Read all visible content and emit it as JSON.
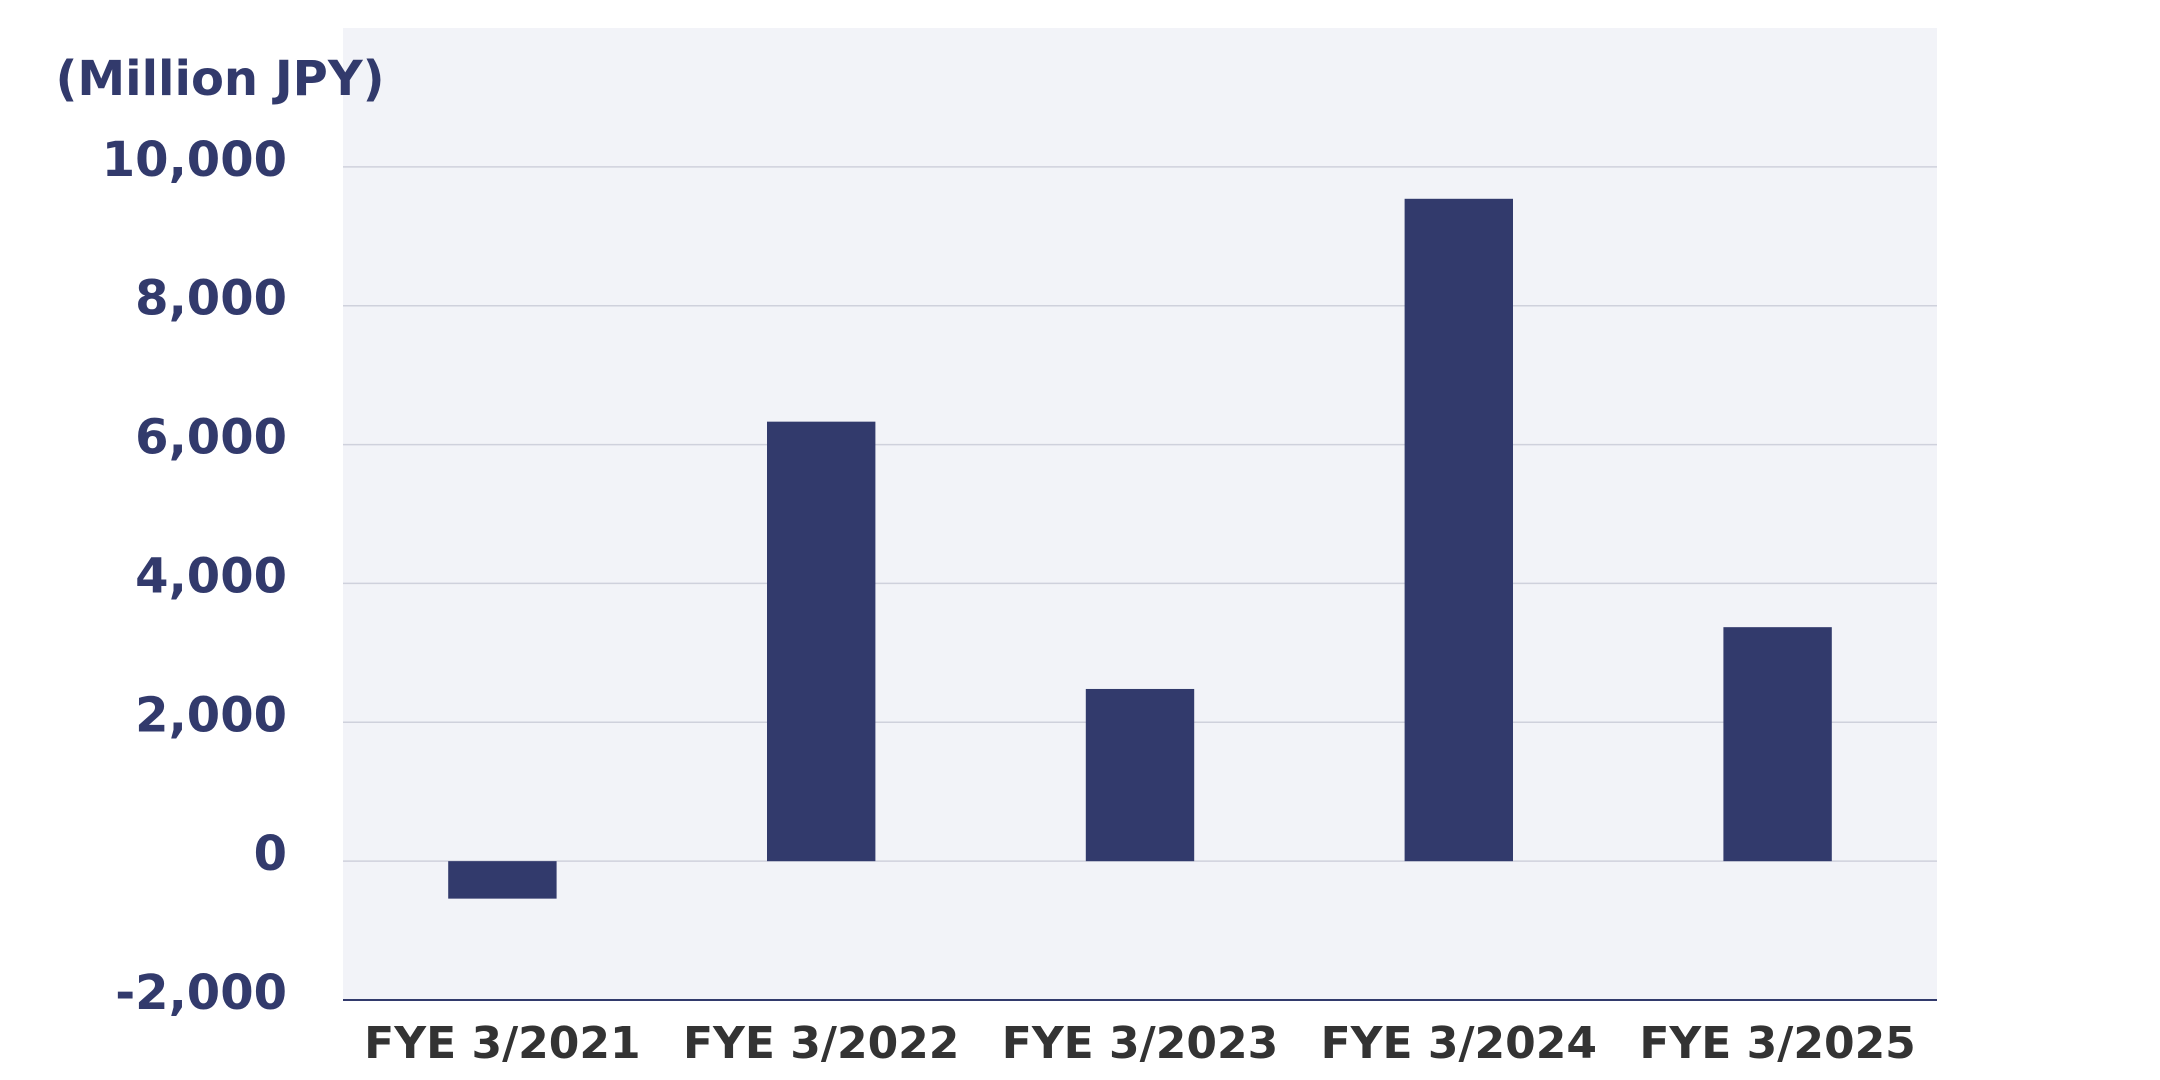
{
  "chart_data": {
    "type": "bar",
    "y_axis_label": "(Million JPY)",
    "categories": [
      "FYE 3/2021",
      "FYE 3/2022",
      "FYE 3/2023",
      "FYE 3/2024",
      "FYE 3/2025"
    ],
    "values": [
      -540,
      6330,
      2480,
      9540,
      3370
    ],
    "color": "#323a6c",
    "ylim": [
      -2000,
      12000
    ],
    "yticks": [
      {
        "value": -2000,
        "label": "-2,000"
      },
      0,
      {
        "value": 2000,
        "label": "2,000"
      },
      {
        "value": 4000,
        "label": "4,000"
      },
      {
        "value": 6000,
        "label": "6,000"
      },
      {
        "value": 8000,
        "label": "8,000"
      },
      {
        "value": 10000,
        "label": "10,000"
      }
    ],
    "grid": true
  }
}
